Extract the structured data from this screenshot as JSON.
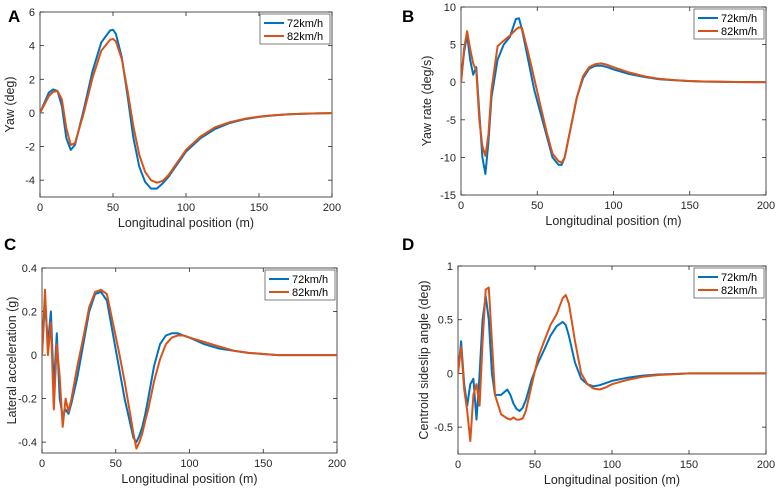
{
  "colors": {
    "s72": "#0072BD",
    "s82": "#D95319",
    "axis": "#262626"
  },
  "chart_data": [
    {
      "panel": "A",
      "type": "line",
      "xlabel": "Longitudinal position (m)",
      "ylabel": "Yaw (deg)",
      "xlim": [
        0,
        200
      ],
      "ylim": [
        -5,
        6
      ],
      "xticks": [
        0,
        50,
        100,
        150,
        200
      ],
      "yticks": [
        -4,
        -2,
        0,
        2,
        4,
        6
      ],
      "legend": [
        "72km/h",
        "82km/h"
      ],
      "legend_loc": "top-right",
      "series": [
        {
          "name": "72km/h",
          "x": [
            0,
            3,
            6,
            9,
            12,
            15,
            18,
            21,
            24,
            30,
            36,
            42,
            48,
            50,
            52,
            56,
            60,
            64,
            68,
            72,
            76,
            80,
            84,
            88,
            92,
            96,
            100,
            110,
            120,
            130,
            140,
            150,
            160,
            170,
            180,
            190,
            200
          ],
          "y": [
            0,
            0.6,
            1.2,
            1.4,
            1.3,
            0.4,
            -1.5,
            -2.2,
            -1.9,
            0.2,
            2.5,
            4.2,
            4.9,
            4.95,
            4.7,
            3.3,
            1.0,
            -1.5,
            -3.2,
            -4.1,
            -4.5,
            -4.5,
            -4.2,
            -3.8,
            -3.3,
            -2.8,
            -2.3,
            -1.5,
            -0.95,
            -0.6,
            -0.38,
            -0.24,
            -0.15,
            -0.09,
            -0.05,
            -0.03,
            -0.01
          ]
        },
        {
          "name": "82km/h",
          "x": [
            0,
            3,
            6,
            9,
            12,
            15,
            18,
            21,
            24,
            30,
            36,
            42,
            48,
            50,
            52,
            56,
            60,
            64,
            68,
            72,
            76,
            80,
            84,
            88,
            92,
            96,
            100,
            110,
            120,
            130,
            140,
            150,
            160,
            170,
            180,
            190,
            200
          ],
          "y": [
            0,
            0.5,
            1.0,
            1.25,
            1.3,
            0.8,
            -0.9,
            -1.9,
            -1.8,
            0.0,
            2.1,
            3.7,
            4.35,
            4.4,
            4.25,
            3.2,
            1.3,
            -0.8,
            -2.5,
            -3.5,
            -4.0,
            -4.15,
            -4.05,
            -3.7,
            -3.2,
            -2.7,
            -2.2,
            -1.4,
            -0.85,
            -0.55,
            -0.35,
            -0.22,
            -0.14,
            -0.08,
            -0.05,
            -0.03,
            -0.01
          ]
        }
      ]
    },
    {
      "panel": "B",
      "type": "line",
      "xlabel": "Longitudinal position (m)",
      "ylabel": "Yaw rate (deg/s)",
      "xlim": [
        0,
        200
      ],
      "ylim": [
        -15,
        10
      ],
      "xticks": [
        0,
        50,
        100,
        150,
        200
      ],
      "yticks": [
        -15,
        -10,
        -5,
        0,
        5,
        10
      ],
      "legend": [
        "72km/h",
        "82km/h"
      ],
      "legend_loc": "top-right",
      "series": [
        {
          "name": "72km/h",
          "x": [
            0,
            2,
            4,
            6,
            8,
            10,
            12,
            14,
            16,
            18,
            20,
            24,
            28,
            32,
            36,
            38,
            40,
            44,
            48,
            52,
            56,
            60,
            64,
            66,
            68,
            72,
            76,
            80,
            84,
            88,
            92,
            96,
            100,
            110,
            120,
            130,
            140,
            150,
            160,
            170,
            180,
            190,
            200
          ],
          "y": [
            0,
            4,
            6.3,
            3,
            1,
            2,
            -4,
            -10,
            -12.2,
            -8,
            -2,
            3,
            5,
            6,
            8.4,
            8.5,
            7,
            3,
            -1,
            -4,
            -7,
            -10,
            -11,
            -11,
            -10,
            -6,
            -2,
            0.5,
            1.8,
            2.2,
            2.2,
            2.0,
            1.7,
            1.1,
            0.7,
            0.4,
            0.25,
            0.15,
            0.08,
            0.05,
            0.03,
            0.01,
            0
          ]
        },
        {
          "name": "82km/h",
          "x": [
            0,
            2,
            4,
            6,
            8,
            10,
            12,
            14,
            16,
            18,
            20,
            24,
            28,
            32,
            36,
            38,
            40,
            44,
            48,
            52,
            56,
            60,
            64,
            66,
            68,
            72,
            76,
            80,
            84,
            88,
            92,
            96,
            100,
            110,
            120,
            130,
            140,
            150,
            160,
            170,
            180,
            190,
            200
          ],
          "y": [
            0,
            4.5,
            6.8,
            4.5,
            2.5,
            1.5,
            -5,
            -8.5,
            -9.8,
            -7,
            -1,
            4.8,
            5.5,
            6.2,
            7,
            7.3,
            7.2,
            4,
            0.5,
            -3,
            -6.5,
            -9.5,
            -10.5,
            -10.7,
            -10,
            -6,
            -2,
            0.8,
            2.0,
            2.4,
            2.5,
            2.3,
            2.0,
            1.3,
            0.8,
            0.45,
            0.28,
            0.16,
            0.09,
            0.05,
            0.03,
            0.01,
            0
          ]
        }
      ]
    },
    {
      "panel": "C",
      "type": "line",
      "xlabel": "Longitudinal position (m)",
      "ylabel": "Lateral acceleration (g)",
      "xlim": [
        0,
        200
      ],
      "ylim": [
        -0.45,
        0.4
      ],
      "xticks": [
        0,
        50,
        100,
        150,
        200
      ],
      "yticks": [
        -0.4,
        -0.2,
        0,
        0.2,
        0.4
      ],
      "legend": [
        "72km/h",
        "82km/h"
      ],
      "legend_loc": "top-right",
      "series": [
        {
          "name": "72km/h",
          "x": [
            0,
            2,
            4,
            6,
            8,
            10,
            12,
            14,
            16,
            18,
            20,
            24,
            28,
            32,
            36,
            40,
            44,
            48,
            52,
            56,
            60,
            62,
            64,
            66,
            68,
            70,
            72,
            76,
            80,
            84,
            88,
            92,
            96,
            100,
            110,
            120,
            130,
            140,
            150,
            160,
            170,
            180,
            190,
            200
          ],
          "y": [
            0,
            0.25,
            0.05,
            0.2,
            -0.15,
            0.1,
            -0.2,
            -0.28,
            -0.25,
            -0.27,
            -0.22,
            -0.1,
            0.05,
            0.2,
            0.28,
            0.29,
            0.25,
            0.1,
            -0.05,
            -0.2,
            -0.32,
            -0.38,
            -0.4,
            -0.37,
            -0.33,
            -0.27,
            -0.2,
            -0.05,
            0.05,
            0.09,
            0.1,
            0.1,
            0.09,
            0.08,
            0.05,
            0.03,
            0.02,
            0.01,
            0.005,
            0,
            0,
            0,
            0,
            0
          ]
        },
        {
          "name": "82km/h",
          "x": [
            0,
            2,
            4,
            6,
            8,
            10,
            12,
            14,
            16,
            18,
            20,
            24,
            28,
            32,
            36,
            40,
            44,
            48,
            52,
            56,
            60,
            62,
            64,
            66,
            68,
            70,
            72,
            76,
            80,
            84,
            88,
            92,
            96,
            100,
            110,
            120,
            130,
            140,
            150,
            160,
            170,
            180,
            190,
            200
          ],
          "y": [
            0,
            0.3,
            0.0,
            0.15,
            -0.25,
            0.05,
            -0.1,
            -0.33,
            -0.2,
            -0.26,
            -0.2,
            -0.05,
            0.08,
            0.22,
            0.29,
            0.3,
            0.28,
            0.15,
            0.02,
            -0.12,
            -0.28,
            -0.36,
            -0.43,
            -0.4,
            -0.36,
            -0.3,
            -0.25,
            -0.12,
            -0.02,
            0.05,
            0.08,
            0.09,
            0.09,
            0.08,
            0.06,
            0.04,
            0.02,
            0.01,
            0.005,
            0,
            0,
            0,
            0,
            0
          ]
        }
      ]
    },
    {
      "panel": "D",
      "type": "line",
      "xlabel": "Longitudinal position (m)",
      "ylabel": "Centroid sideslip angle (deg)",
      "xlim": [
        0,
        200
      ],
      "ylim": [
        -0.75,
        1
      ],
      "xticks": [
        0,
        50,
        100,
        150,
        200
      ],
      "yticks": [
        -0.5,
        0,
        0.5,
        1
      ],
      "legend": [
        "72km/h",
        "82km/h"
      ],
      "legend_loc": "top-right",
      "series": [
        {
          "name": "72km/h",
          "x": [
            0,
            2,
            4,
            6,
            8,
            10,
            12,
            14,
            16,
            18,
            20,
            22,
            24,
            28,
            32,
            34,
            36,
            38,
            40,
            42,
            44,
            48,
            52,
            56,
            60,
            64,
            68,
            70,
            72,
            76,
            80,
            84,
            88,
            92,
            96,
            100,
            110,
            120,
            130,
            140,
            150,
            160,
            170,
            180,
            190,
            200
          ],
          "y": [
            0,
            0.3,
            -0.1,
            -0.3,
            -0.1,
            -0.05,
            -0.43,
            0.0,
            0.5,
            0.72,
            0.5,
            0.0,
            -0.2,
            -0.2,
            -0.15,
            -0.2,
            -0.28,
            -0.33,
            -0.35,
            -0.32,
            -0.25,
            -0.05,
            0.1,
            0.22,
            0.35,
            0.44,
            0.48,
            0.45,
            0.35,
            0.1,
            -0.05,
            -0.1,
            -0.12,
            -0.11,
            -0.09,
            -0.07,
            -0.04,
            -0.02,
            -0.01,
            -0.005,
            0,
            0,
            0,
            0,
            0,
            0
          ]
        },
        {
          "name": "82km/h",
          "x": [
            0,
            2,
            4,
            6,
            8,
            10,
            12,
            14,
            16,
            18,
            20,
            22,
            24,
            28,
            32,
            34,
            36,
            38,
            40,
            42,
            44,
            48,
            52,
            56,
            60,
            64,
            68,
            70,
            72,
            76,
            80,
            84,
            88,
            92,
            96,
            100,
            110,
            120,
            130,
            140,
            150,
            160,
            170,
            180,
            190,
            200
          ],
          "y": [
            0,
            0.25,
            -0.15,
            -0.35,
            -0.63,
            -0.2,
            -0.1,
            -0.3,
            0.3,
            0.78,
            0.8,
            0.3,
            -0.2,
            -0.38,
            -0.42,
            -0.43,
            -0.41,
            -0.43,
            -0.43,
            -0.42,
            -0.35,
            -0.1,
            0.15,
            0.3,
            0.45,
            0.55,
            0.7,
            0.73,
            0.65,
            0.3,
            0.0,
            -0.1,
            -0.14,
            -0.15,
            -0.13,
            -0.1,
            -0.06,
            -0.03,
            -0.015,
            -0.007,
            0,
            0,
            0,
            0,
            0,
            0
          ]
        }
      ]
    }
  ]
}
